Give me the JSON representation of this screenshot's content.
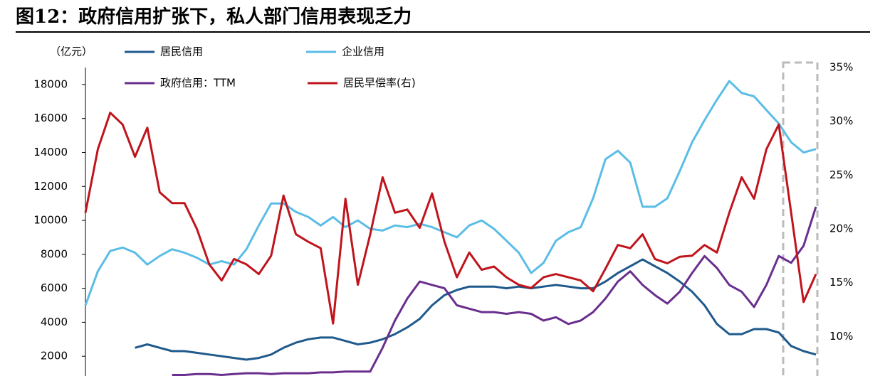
{
  "chart_data": {
    "type": "line",
    "title": "图12：政府信用扩张下，私人部门信用表现乏力",
    "y_label": "（亿元）",
    "ylim": [
      0,
      19000
    ],
    "yticks": [
      2000,
      4000,
      6000,
      8000,
      10000,
      12000,
      14000,
      16000,
      18000
    ],
    "y2lim": [
      5,
      35
    ],
    "y2ticks": [
      {
        "value": 10,
        "label": "10%"
      },
      {
        "value": 15,
        "label": "15%"
      },
      {
        "value": 20,
        "label": "20%"
      },
      {
        "value": 25,
        "label": "25%"
      },
      {
        "value": 30,
        "label": "30%"
      },
      {
        "value": 35,
        "label": "35%"
      }
    ],
    "series": [
      {
        "name": "居民信用",
        "color": "#1f5a8c",
        "values": [
          null,
          null,
          null,
          null,
          2500,
          2700,
          2500,
          2300,
          2300,
          2200,
          2100,
          2000,
          1900,
          1800,
          1900,
          2100,
          2500,
          2800,
          3000,
          3100,
          3100,
          2900,
          2700,
          2800,
          3000,
          3300,
          3700,
          4200,
          5000,
          5600,
          5900,
          6100,
          6100,
          6100,
          6000,
          6100,
          6000,
          6100,
          6200,
          6100,
          6000,
          6000,
          6400,
          6900,
          7300,
          7700,
          7300,
          6900,
          6400,
          5800,
          5000,
          3900,
          3300,
          3300,
          3600,
          3600,
          3400,
          2600,
          2300,
          2100
        ]
      },
      {
        "name": "企业信用",
        "color": "#5bbde6",
        "values": [
          5000,
          7000,
          8200,
          8400,
          8100,
          7400,
          7900,
          8300,
          8100,
          7800,
          7400,
          7600,
          7400,
          8300,
          9700,
          11000,
          11000,
          10500,
          10200,
          9700,
          10200,
          9600,
          10000,
          9500,
          9400,
          9700,
          9600,
          9800,
          9600,
          9300,
          9000,
          9700,
          10000,
          9500,
          8800,
          8100,
          6900,
          7500,
          8800,
          9300,
          9600,
          11300,
          13600,
          14100,
          13400,
          10800,
          10800,
          11300,
          12900,
          14600,
          15900,
          17100,
          18200,
          17500,
          17300,
          16500,
          15700,
          14600,
          14000,
          14200
        ]
      },
      {
        "name": "政府信用：TTM",
        "color": "#6a2f8e",
        "values": [
          null,
          null,
          null,
          null,
          null,
          null,
          null,
          900,
          900,
          950,
          950,
          900,
          950,
          1000,
          1000,
          950,
          1000,
          1000,
          1000,
          1050,
          1050,
          1100,
          1100,
          1100,
          2500,
          4100,
          5400,
          6400,
          6200,
          6000,
          5000,
          4800,
          4600,
          4600,
          4500,
          4600,
          4500,
          4100,
          4300,
          3900,
          4100,
          4600,
          5400,
          6400,
          7000,
          6200,
          5600,
          5100,
          5800,
          6900,
          7900,
          7200,
          6200,
          5800,
          4900,
          6200,
          7900,
          7500,
          8500,
          10800
        ]
      },
      {
        "name": "居民早偿率(右)",
        "color": "#c0141c",
        "axis": "y2",
        "values": [
          21.5,
          27.4,
          30.8,
          29.7,
          26.7,
          29.4,
          23.4,
          22.4,
          22.4,
          20,
          16.7,
          15.2,
          17.2,
          16.7,
          15.8,
          17.5,
          23.1,
          19.5,
          18.8,
          18.2,
          11.2,
          22.8,
          14.8,
          19.5,
          24.8,
          21.5,
          21.8,
          20.1,
          23.3,
          18.8,
          15.5,
          17.8,
          16.2,
          16.5,
          15.5,
          14.8,
          14.5,
          15.5,
          15.8,
          15.5,
          15.2,
          14.2,
          16.3,
          18.5,
          18.2,
          19.5,
          17.2,
          16.8,
          17.4,
          17.5,
          18.5,
          17.8,
          21.5,
          24.8,
          22.8,
          27.4,
          29.7,
          21.5,
          13.2,
          15.8
        ]
      }
    ]
  }
}
